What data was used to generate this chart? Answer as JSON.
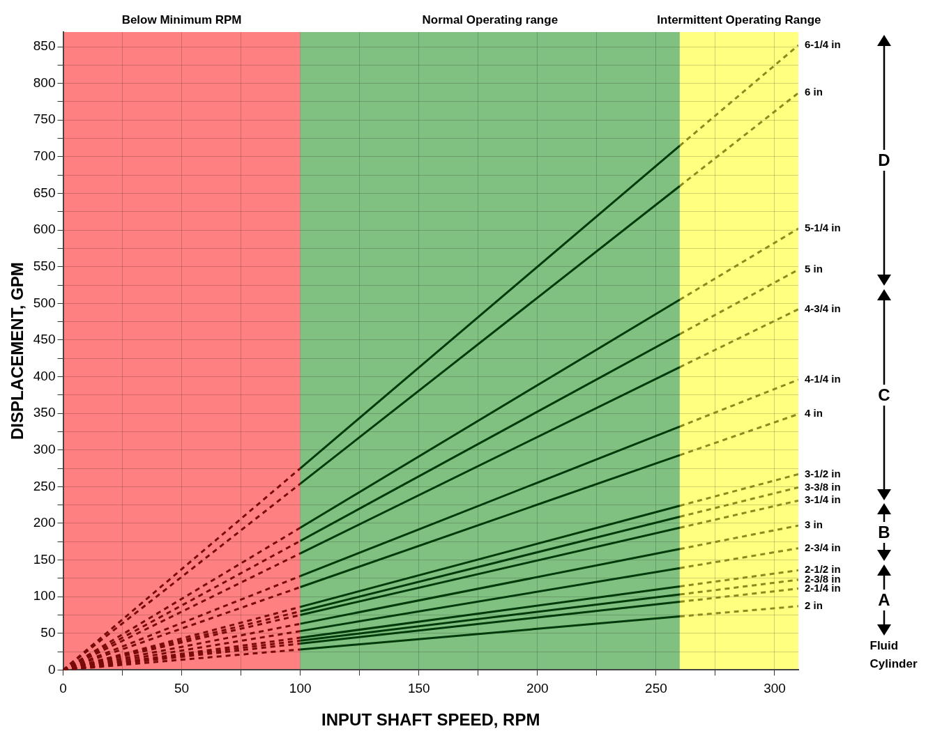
{
  "chart_data": {
    "type": "line",
    "xlabel": "INPUT SHAFT SPEED, RPM",
    "ylabel": "DISPLACEMENT, GPM",
    "xlim": [
      0,
      310
    ],
    "ylim": [
      0,
      870
    ],
    "xticks": [
      0,
      {
        "value": 25,
        "label": null
      },
      50,
      {
        "value": 75,
        "label": null
      },
      100,
      {
        "value": 125,
        "label": null
      },
      150,
      {
        "value": 175,
        "label": null
      },
      200,
      {
        "value": 225,
        "label": null
      },
      250,
      {
        "value": 275,
        "label": null
      },
      300
    ],
    "yticks": [
      0,
      {
        "value": 25,
        "label": null
      },
      50,
      {
        "value": 75,
        "label": null
      },
      100,
      {
        "value": 125,
        "label": null
      },
      150,
      {
        "value": 175,
        "label": null
      },
      200,
      {
        "value": 225,
        "label": null
      },
      250,
      {
        "value": 275,
        "label": null
      },
      300,
      {
        "value": 325,
        "label": null
      },
      350,
      {
        "value": 375,
        "label": null
      },
      400,
      {
        "value": 425,
        "label": null
      },
      450,
      {
        "value": 475,
        "label": null
      },
      500,
      {
        "value": 525,
        "label": null
      },
      550,
      {
        "value": 575,
        "label": null
      },
      600,
      {
        "value": 625,
        "label": null
      },
      650,
      {
        "value": 675,
        "label": null
      },
      700,
      {
        "value": 725,
        "label": null
      },
      750,
      {
        "value": 775,
        "label": null
      },
      800,
      {
        "value": 825,
        "label": null
      },
      850
    ],
    "grid": true,
    "legend": false,
    "bands": [
      {
        "axis": "x",
        "from": 0,
        "to": 100,
        "label": "Below Minimum RPM",
        "color": "#ff8080"
      },
      {
        "axis": "x",
        "from": 100,
        "to": 260,
        "label": "Normal Operating range",
        "color": "#80c080"
      },
      {
        "axis": "x",
        "from": 260,
        "to": 310,
        "label": "Intermittent Operating Range",
        "color": "#ffff80"
      }
    ],
    "annotations": [
      "D",
      "C",
      "B",
      "A",
      "Fluid Cylinder"
    ],
    "series": [
      {
        "color": "#7a0a0a",
        "line_style": "dashed",
        "x": [
          0,
          100
        ],
        "values": [
          0,
          28
        ]
      },
      {
        "color": "#7a0a0a",
        "line_style": "dashed",
        "x": [
          0,
          100
        ],
        "values": [
          0,
          36
        ]
      },
      {
        "color": "#7a0a0a",
        "line_style": "dashed",
        "x": [
          0,
          100
        ],
        "values": [
          0,
          40
        ]
      },
      {
        "color": "#7a0a0a",
        "line_style": "dashed",
        "x": [
          0,
          100
        ],
        "values": [
          0,
          44
        ]
      },
      {
        "color": "#7a0a0a",
        "line_style": "dashed",
        "x": [
          0,
          100
        ],
        "values": [
          0,
          53
        ]
      },
      {
        "color": "#7a0a0a",
        "line_style": "dashed",
        "x": [
          0,
          100
        ],
        "values": [
          0,
          63
        ]
      },
      {
        "color": "#7a0a0a",
        "line_style": "dashed",
        "x": [
          0,
          100
        ],
        "values": [
          0,
          75
        ]
      },
      {
        "color": "#7a0a0a",
        "line_style": "dashed",
        "x": [
          0,
          100
        ],
        "values": [
          0,
          80
        ]
      },
      {
        "color": "#7a0a0a",
        "line_style": "dashed",
        "x": [
          0,
          100
        ],
        "values": [
          0,
          86
        ]
      },
      {
        "color": "#7a0a0a",
        "line_style": "dashed",
        "x": [
          0,
          100
        ],
        "values": [
          0,
          113
        ]
      },
      {
        "color": "#7a0a0a",
        "line_style": "dashed",
        "x": [
          0,
          100
        ],
        "values": [
          0,
          128
        ]
      },
      {
        "color": "#7a0a0a",
        "line_style": "dashed",
        "x": [
          0,
          100
        ],
        "values": [
          0,
          159
        ]
      },
      {
        "color": "#7a0a0a",
        "line_style": "dashed",
        "x": [
          0,
          100
        ],
        "values": [
          0,
          176
        ]
      },
      {
        "color": "#7a0a0a",
        "line_style": "dashed",
        "x": [
          0,
          100
        ],
        "values": [
          0,
          194
        ]
      },
      {
        "color": "#7a0a0a",
        "line_style": "dashed",
        "x": [
          0,
          100
        ],
        "values": [
          0,
          254
        ]
      },
      {
        "color": "#7a0a0a",
        "line_style": "dashed",
        "x": [
          0,
          100
        ],
        "values": [
          0,
          275
        ]
      },
      {
        "color": "#003a0a",
        "line_style": "solid",
        "x": [
          100,
          260
        ],
        "values": [
          28,
          73
        ]
      },
      {
        "color": "#003a0a",
        "line_style": "solid",
        "x": [
          100,
          260
        ],
        "values": [
          36,
          93
        ]
      },
      {
        "color": "#003a0a",
        "line_style": "solid",
        "x": [
          100,
          260
        ],
        "values": [
          40,
          103
        ]
      },
      {
        "color": "#003a0a",
        "line_style": "solid",
        "x": [
          100,
          260
        ],
        "values": [
          44,
          114
        ]
      },
      {
        "color": "#003a0a",
        "line_style": "solid",
        "x": [
          100,
          260
        ],
        "values": [
          53,
          139
        ]
      },
      {
        "color": "#003a0a",
        "line_style": "solid",
        "x": [
          100,
          260
        ],
        "values": [
          63,
          165
        ]
      },
      {
        "color": "#003a0a",
        "line_style": "solid",
        "x": [
          100,
          260
        ],
        "values": [
          75,
          194
        ]
      },
      {
        "color": "#003a0a",
        "line_style": "solid",
        "x": [
          100,
          260
        ],
        "values": [
          80,
          209
        ]
      },
      {
        "color": "#003a0a",
        "line_style": "solid",
        "x": [
          100,
          260
        ],
        "values": [
          86,
          224
        ]
      },
      {
        "color": "#003a0a",
        "line_style": "solid",
        "x": [
          100,
          260
        ],
        "values": [
          113,
          293
        ]
      },
      {
        "color": "#003a0a",
        "line_style": "solid",
        "x": [
          100,
          260
        ],
        "values": [
          128,
          332
        ]
      },
      {
        "color": "#003a0a",
        "line_style": "solid",
        "x": [
          100,
          260
        ],
        "values": [
          159,
          413
        ]
      },
      {
        "color": "#003a0a",
        "line_style": "solid",
        "x": [
          100,
          260
        ],
        "values": [
          176,
          458
        ]
      },
      {
        "color": "#003a0a",
        "line_style": "solid",
        "x": [
          100,
          260
        ],
        "values": [
          194,
          505
        ]
      },
      {
        "color": "#003a0a",
        "line_style": "solid",
        "x": [
          100,
          260
        ],
        "values": [
          254,
          660
        ]
      },
      {
        "color": "#003a0a",
        "line_style": "solid",
        "x": [
          100,
          260
        ],
        "values": [
          275,
          715
        ]
      },
      {
        "name": "2 in",
        "color": "#8a8a1e",
        "line_style": "dashed",
        "x": [
          260,
          310
        ],
        "values": [
          73,
          87
        ]
      },
      {
        "name": "2-1/4 in",
        "color": "#8a8a1e",
        "line_style": "dashed",
        "x": [
          260,
          310
        ],
        "values": [
          93,
          111
        ]
      },
      {
        "name": "2-3/8 in",
        "color": "#8a8a1e",
        "line_style": "dashed",
        "x": [
          260,
          310
        ],
        "values": [
          103,
          123
        ]
      },
      {
        "name": "2-1/2 in",
        "color": "#8a8a1e",
        "line_style": "dashed",
        "x": [
          260,
          310
        ],
        "values": [
          114,
          136
        ]
      },
      {
        "name": "2-3/4 in",
        "color": "#8a8a1e",
        "line_style": "dashed",
        "x": [
          260,
          310
        ],
        "values": [
          139,
          166
        ]
      },
      {
        "name": "3 in",
        "color": "#8a8a1e",
        "line_style": "dashed",
        "x": [
          260,
          310
        ],
        "values": [
          165,
          197
        ]
      },
      {
        "name": "3-1/4 in",
        "color": "#8a8a1e",
        "line_style": "dashed",
        "x": [
          260,
          310
        ],
        "values": [
          194,
          231
        ]
      },
      {
        "name": "3-3/8 in",
        "color": "#8a8a1e",
        "line_style": "dashed",
        "x": [
          260,
          310
        ],
        "values": [
          209,
          249
        ]
      },
      {
        "name": "3-1/2 in",
        "color": "#8a8a1e",
        "line_style": "dashed",
        "x": [
          260,
          310
        ],
        "values": [
          224,
          267
        ]
      },
      {
        "name": "4 in",
        "color": "#8a8a1e",
        "line_style": "dashed",
        "x": [
          260,
          310
        ],
        "values": [
          293,
          349
        ]
      },
      {
        "name": "4-1/4 in",
        "color": "#8a8a1e",
        "line_style": "dashed",
        "x": [
          260,
          310
        ],
        "values": [
          332,
          396
        ]
      },
      {
        "name": "4-3/4 in",
        "color": "#8a8a1e",
        "line_style": "dashed",
        "x": [
          260,
          310
        ],
        "values": [
          413,
          492
        ]
      },
      {
        "name": "5 in",
        "color": "#8a8a1e",
        "line_style": "dashed",
        "x": [
          260,
          310
        ],
        "values": [
          458,
          546
        ]
      },
      {
        "name": "5-1/4 in",
        "color": "#8a8a1e",
        "line_style": "dashed",
        "x": [
          260,
          310
        ],
        "values": [
          505,
          602
        ]
      },
      {
        "name": "6 in",
        "color": "#8a8a1e",
        "line_style": "dashed",
        "x": [
          260,
          310
        ],
        "values": [
          660,
          787
        ]
      },
      {
        "name": "6-1/4 in",
        "color": "#8a8a1e",
        "line_style": "dashed",
        "x": [
          260,
          310
        ],
        "values": [
          715,
          852
        ]
      }
    ]
  }
}
